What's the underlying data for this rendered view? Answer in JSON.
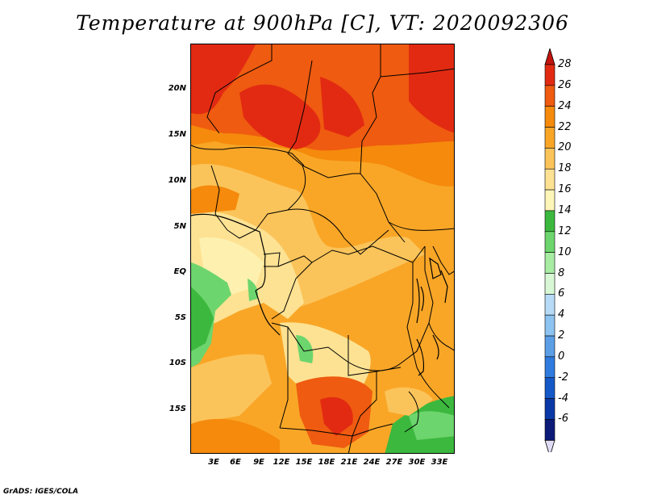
{
  "title": "Temperature at 900hPa [C], VT: 2020092306",
  "footer": "GrADS: IGES/COLA",
  "lat_ticks": [
    "20N",
    "15N",
    "10N",
    "5N",
    "EQ",
    "5S",
    "10S",
    "15S"
  ],
  "lon_ticks": [
    "3E",
    "6E",
    "9E",
    "12E",
    "15E",
    "18E",
    "21E",
    "24E",
    "27E",
    "30E",
    "33E"
  ],
  "colorbar": {
    "labels": [
      "28",
      "26",
      "24",
      "22",
      "20",
      "18",
      "16",
      "14",
      "12",
      "10",
      "8",
      "6",
      "4",
      "2",
      "0",
      "-2",
      "-4",
      "-6"
    ],
    "colors": [
      "#e22a12",
      "#ef5b10",
      "#f58a0c",
      "#f9a627",
      "#fbc45a",
      "#fde293",
      "#fef5b8",
      "#3cb83e",
      "#6dd56d",
      "#a8eca3",
      "#d8f7d4",
      "#b7dbf6",
      "#8cc3f0",
      "#5b9ee6",
      "#2f7bde",
      "#1559c8",
      "#0a38a6",
      "#0c1a78"
    ],
    "top_arrow_color": "#c4140e",
    "bottom_arrow_color": "#e0dcf6"
  }
}
